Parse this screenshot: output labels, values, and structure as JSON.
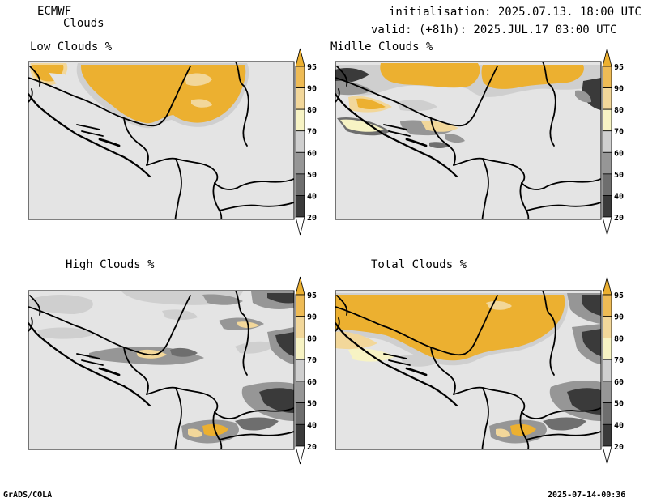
{
  "header": {
    "model": "ECMWF",
    "product": "Clouds",
    "initialisation": "initialisation: 2025.07.13. 18:00 UTC",
    "valid": "valid: (+81h): 2025.JUL.17 03:00 UTC"
  },
  "panels": [
    {
      "title": "Low Clouds %"
    },
    {
      "title": "Midlle Clouds %"
    },
    {
      "title": "High Clouds %"
    },
    {
      "title": "Total Clouds %"
    }
  ],
  "colorbar": {
    "levels": [
      "20",
      "40",
      "50",
      "60",
      "70",
      "80",
      "90",
      "95"
    ],
    "colors": {
      "lt20": "#ffffff",
      "c20_40": "#3a3a3a",
      "c40_50": "#6e6e6e",
      "c50_60": "#969696",
      "c60_70": "#cfcfcf",
      "c70_80": "#f7f3c4",
      "c80_90": "#f2d79a",
      "c90_95": "#eebb55",
      "gt95": "#ecb030"
    }
  },
  "colors": {
    "background_field": "#e4e4e4",
    "cloud_orange": "#ecb030",
    "cloud_light_orange": "#f2d79a",
    "cloud_grey": "#cfcfcf",
    "cloud_dark": "#3a3a3a",
    "border_line": "#000000"
  },
  "footer": {
    "left": "GrADS/COLA",
    "right": "2025-07-14-00:36"
  }
}
